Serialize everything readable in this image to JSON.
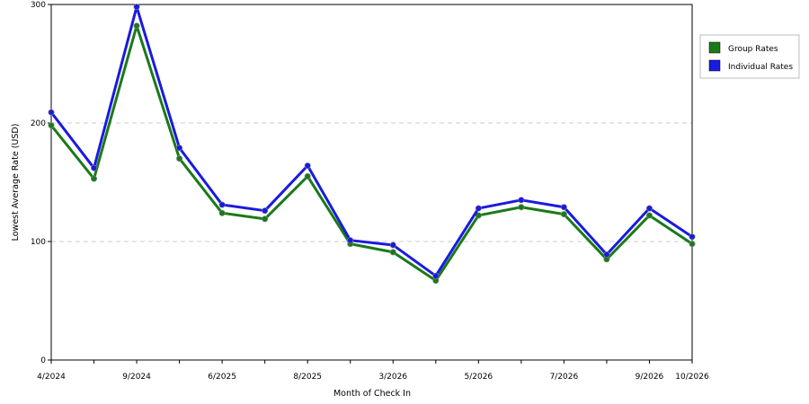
{
  "chart_data": {
    "type": "line",
    "title": "",
    "xlabel": "Month of Check In",
    "ylabel": "Lowest Average Rate (USD)",
    "ylim": [
      0,
      300
    ],
    "yticks": [
      0,
      100,
      200,
      300
    ],
    "grid": true,
    "legend_position": "right",
    "x_tick_labels": [
      {
        "index": 0,
        "label": "4/2024"
      },
      {
        "index": 2,
        "label": "9/2024"
      },
      {
        "index": 4,
        "label": "6/2025"
      },
      {
        "index": 6,
        "label": "8/2025"
      },
      {
        "index": 8,
        "label": "3/2026"
      },
      {
        "index": 10,
        "label": "5/2026"
      },
      {
        "index": 12,
        "label": "7/2026"
      },
      {
        "index": 14,
        "label": "9/2026"
      },
      {
        "index": 15,
        "label": "10/2026"
      }
    ],
    "series": [
      {
        "name": "Group Rates",
        "color": "#1a7a1a",
        "values": [
          198,
          153,
          282,
          170,
          124,
          119,
          155,
          98,
          91,
          67,
          122,
          129,
          123,
          85,
          122,
          98
        ]
      },
      {
        "name": "Individual Rates",
        "color": "#1a1adf",
        "values": [
          209,
          162,
          298,
          179,
          131,
          126,
          164,
          101,
          97,
          71,
          128,
          135,
          129,
          89,
          128,
          104
        ]
      }
    ]
  }
}
